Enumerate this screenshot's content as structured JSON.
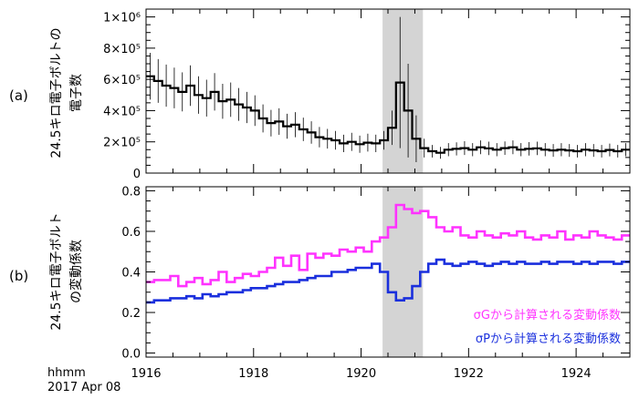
{
  "colors": {
    "top_series": "#000000",
    "sigma_g": "#ff33ff",
    "sigma_p": "#1a2fdd",
    "shade": "#d4d4d4"
  },
  "x_caption_line1": "hhmm",
  "x_caption_line2": "2017 Apr 08",
  "chart_data": [
    {
      "panel": "(a)",
      "type": "line",
      "style": "step",
      "ylabel_line1": "24.5キロ電子ボルトの",
      "ylabel_line2": "電子数",
      "xlim": [
        1916.0,
        1925.0
      ],
      "ylim": [
        0,
        1050000
      ],
      "x_ticks": [
        1916,
        1918,
        1920,
        1922,
        1924
      ],
      "y_ticks": [
        0,
        200000,
        400000,
        600000,
        800000,
        1000000
      ],
      "y_tick_labels": [
        "0",
        "2×10⁵",
        "4×10⁵",
        "6×10⁵",
        "8×10⁵",
        "1×10⁶"
      ],
      "shaded_x": [
        1920.4,
        1921.15
      ],
      "bin_width": 0.15,
      "x": [
        1916.0,
        1916.15,
        1916.3,
        1916.45,
        1916.6,
        1916.75,
        1916.9,
        1917.05,
        1917.2,
        1917.35,
        1917.5,
        1917.65,
        1917.8,
        1917.95,
        1918.1,
        1918.25,
        1918.4,
        1918.55,
        1918.7,
        1918.85,
        1919.0,
        1919.15,
        1919.3,
        1919.45,
        1919.6,
        1919.75,
        1919.9,
        1920.05,
        1920.2,
        1920.35,
        1920.5,
        1920.65,
        1920.8,
        1920.95,
        1921.1,
        1921.25,
        1921.4,
        1921.55,
        1921.7,
        1921.85,
        1922.0,
        1922.15,
        1922.3,
        1922.45,
        1922.6,
        1922.75,
        1922.9,
        1923.05,
        1923.2,
        1923.35,
        1923.5,
        1923.65,
        1923.8,
        1923.95,
        1924.1,
        1924.25,
        1924.4,
        1924.55,
        1924.7,
        1924.85
      ],
      "values": [
        620000,
        590000,
        560000,
        545000,
        520000,
        560000,
        500000,
        480000,
        520000,
        460000,
        470000,
        440000,
        420000,
        400000,
        350000,
        320000,
        330000,
        300000,
        310000,
        280000,
        260000,
        230000,
        220000,
        210000,
        190000,
        200000,
        185000,
        195000,
        190000,
        210000,
        290000,
        580000,
        400000,
        220000,
        160000,
        140000,
        130000,
        150000,
        155000,
        160000,
        150000,
        165000,
        158000,
        150000,
        160000,
        165000,
        150000,
        155000,
        158000,
        150000,
        145000,
        150000,
        145000,
        140000,
        150000,
        145000,
        140000,
        148000,
        140000,
        150000
      ],
      "error": [
        150000,
        140000,
        135000,
        130000,
        125000,
        130000,
        120000,
        118000,
        120000,
        112000,
        110000,
        105000,
        100000,
        98000,
        90000,
        85000,
        85000,
        80000,
        80000,
        75000,
        72000,
        65000,
        63000,
        60000,
        56000,
        58000,
        55000,
        57000,
        56000,
        60000,
        110000,
        420000,
        300000,
        150000,
        60000,
        40000,
        38000,
        42000,
        42000,
        44000,
        42000,
        44000,
        43000,
        42000,
        43000,
        44000,
        42000,
        43000,
        43000,
        42000,
        41000,
        42000,
        41000,
        40000,
        42000,
        41000,
        40000,
        41000,
        40000,
        42000
      ]
    },
    {
      "panel": "(b)",
      "type": "line",
      "style": "step",
      "ylabel_line1": "24.5キロ電子ボルト",
      "ylabel_line2": "の変動係数",
      "xlim": [
        1916.0,
        1925.0
      ],
      "ylim": [
        -0.02,
        0.82
      ],
      "x_ticks": [
        1916,
        1918,
        1920,
        1922,
        1924
      ],
      "y_ticks": [
        0.0,
        0.2,
        0.4,
        0.6,
        0.8
      ],
      "y_tick_labels": [
        "0.0",
        "0.2",
        "0.4",
        "0.6",
        "0.8"
      ],
      "shaded_x": [
        1920.4,
        1921.15
      ],
      "bin_width": 0.15,
      "x": [
        1916.0,
        1916.15,
        1916.3,
        1916.45,
        1916.6,
        1916.75,
        1916.9,
        1917.05,
        1917.2,
        1917.35,
        1917.5,
        1917.65,
        1917.8,
        1917.95,
        1918.1,
        1918.25,
        1918.4,
        1918.55,
        1918.7,
        1918.85,
        1919.0,
        1919.15,
        1919.3,
        1919.45,
        1919.6,
        1919.75,
        1919.9,
        1920.05,
        1920.2,
        1920.35,
        1920.5,
        1920.65,
        1920.8,
        1920.95,
        1921.1,
        1921.25,
        1921.4,
        1921.55,
        1921.7,
        1921.85,
        1922.0,
        1922.15,
        1922.3,
        1922.45,
        1922.6,
        1922.75,
        1922.9,
        1923.05,
        1923.2,
        1923.35,
        1923.5,
        1923.65,
        1923.8,
        1923.95,
        1924.1,
        1924.25,
        1924.4,
        1924.55,
        1924.7,
        1924.85
      ],
      "series": [
        {
          "name": "σGから計算される変動係数",
          "values": [
            0.35,
            0.36,
            0.36,
            0.38,
            0.33,
            0.35,
            0.37,
            0.34,
            0.36,
            0.4,
            0.35,
            0.37,
            0.39,
            0.38,
            0.4,
            0.42,
            0.47,
            0.43,
            0.48,
            0.41,
            0.49,
            0.47,
            0.49,
            0.48,
            0.51,
            0.5,
            0.52,
            0.5,
            0.55,
            0.57,
            0.62,
            0.73,
            0.71,
            0.69,
            0.7,
            0.67,
            0.62,
            0.6,
            0.62,
            0.58,
            0.57,
            0.6,
            0.58,
            0.57,
            0.59,
            0.58,
            0.6,
            0.57,
            0.56,
            0.58,
            0.57,
            0.6,
            0.56,
            0.58,
            0.57,
            0.6,
            0.58,
            0.57,
            0.56,
            0.58
          ]
        },
        {
          "name": "σPから計算される変動係数",
          "values": [
            0.25,
            0.26,
            0.26,
            0.27,
            0.27,
            0.28,
            0.27,
            0.29,
            0.28,
            0.29,
            0.3,
            0.3,
            0.31,
            0.32,
            0.32,
            0.33,
            0.34,
            0.35,
            0.35,
            0.36,
            0.37,
            0.38,
            0.38,
            0.4,
            0.4,
            0.41,
            0.42,
            0.42,
            0.44,
            0.4,
            0.3,
            0.26,
            0.27,
            0.33,
            0.4,
            0.44,
            0.46,
            0.44,
            0.43,
            0.44,
            0.45,
            0.44,
            0.43,
            0.44,
            0.45,
            0.44,
            0.45,
            0.44,
            0.44,
            0.45,
            0.44,
            0.45,
            0.45,
            0.44,
            0.45,
            0.44,
            0.45,
            0.45,
            0.44,
            0.45
          ]
        }
      ],
      "legend_position": "bottom-right"
    }
  ]
}
